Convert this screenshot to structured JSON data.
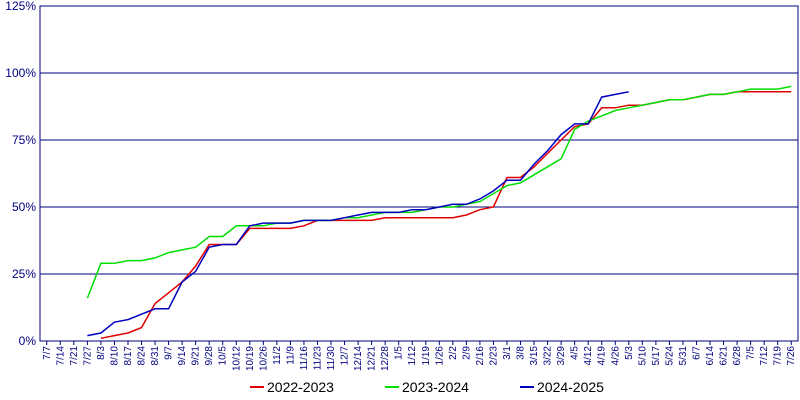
{
  "chart_data": {
    "type": "line",
    "categories": [
      "7/7",
      "7/14",
      "7/21",
      "7/27",
      "8/3",
      "8/10",
      "8/17",
      "8/24",
      "8/31",
      "9/7",
      "9/14",
      "9/21",
      "9/28",
      "10/5",
      "10/12",
      "10/19",
      "10/26",
      "11/2",
      "11/9",
      "11/16",
      "11/23",
      "11/30",
      "12/7",
      "12/14",
      "12/21",
      "12/28",
      "1/5",
      "1/12",
      "1/19",
      "1/26",
      "2/2",
      "2/9",
      "2/16",
      "2/23",
      "3/1",
      "3/8",
      "3/15",
      "3/22",
      "3/29",
      "4/5",
      "4/12",
      "4/19",
      "4/26",
      "5/3",
      "5/10",
      "5/17",
      "5/24",
      "5/31",
      "6/7",
      "6/14",
      "6/21",
      "6/28",
      "7/5",
      "7/12",
      "7/19",
      "7/26"
    ],
    "series": [
      {
        "name": "2022-2023",
        "color": "#e00000",
        "values": [
          null,
          null,
          null,
          null,
          1,
          2,
          3,
          5,
          14,
          18,
          22,
          28,
          36,
          36,
          36,
          42,
          42,
          42,
          42,
          43,
          45,
          45,
          45,
          45,
          45,
          46,
          46,
          46,
          46,
          46,
          46,
          47,
          49,
          50,
          61,
          61,
          65,
          70,
          75,
          80,
          81,
          87,
          87,
          88,
          88,
          89,
          90,
          90,
          91,
          92,
          92,
          93,
          93,
          93,
          93,
          93
        ]
      },
      {
        "name": "2023-2024",
        "color": "#00e000",
        "values": [
          null,
          null,
          null,
          16,
          29,
          29,
          30,
          30,
          31,
          33,
          34,
          35,
          39,
          39,
          43,
          43,
          43,
          44,
          44,
          45,
          45,
          45,
          46,
          46,
          47,
          48,
          48,
          48,
          49,
          50,
          50,
          51,
          52,
          55,
          58,
          59,
          62,
          65,
          68,
          79,
          82,
          84,
          86,
          87,
          88,
          89,
          90,
          90,
          91,
          92,
          92,
          93,
          94,
          94,
          94,
          95
        ]
      },
      {
        "name": "2024-2025",
        "color": "#0000c0",
        "values": [
          null,
          null,
          null,
          2,
          3,
          7,
          8,
          10,
          12,
          12,
          22,
          26,
          35,
          36,
          36,
          43,
          44,
          44,
          44,
          45,
          45,
          45,
          46,
          47,
          48,
          48,
          48,
          49,
          49,
          50,
          51,
          51,
          53,
          56,
          60,
          60,
          66,
          71,
          77,
          81,
          81,
          91,
          92,
          93,
          null,
          null,
          null,
          null,
          null,
          null,
          null,
          null,
          null,
          null,
          null,
          null
        ]
      }
    ],
    "ylim": [
      0,
      125
    ],
    "yticks": [
      {
        "value": 0,
        "label": "0%"
      },
      {
        "value": 25,
        "label": "25%"
      },
      {
        "value": 50,
        "label": "50%"
      },
      {
        "value": 75,
        "label": "75%"
      },
      {
        "value": 100,
        "label": "100%"
      },
      {
        "value": 125,
        "label": "125%"
      }
    ],
    "grid": true
  }
}
